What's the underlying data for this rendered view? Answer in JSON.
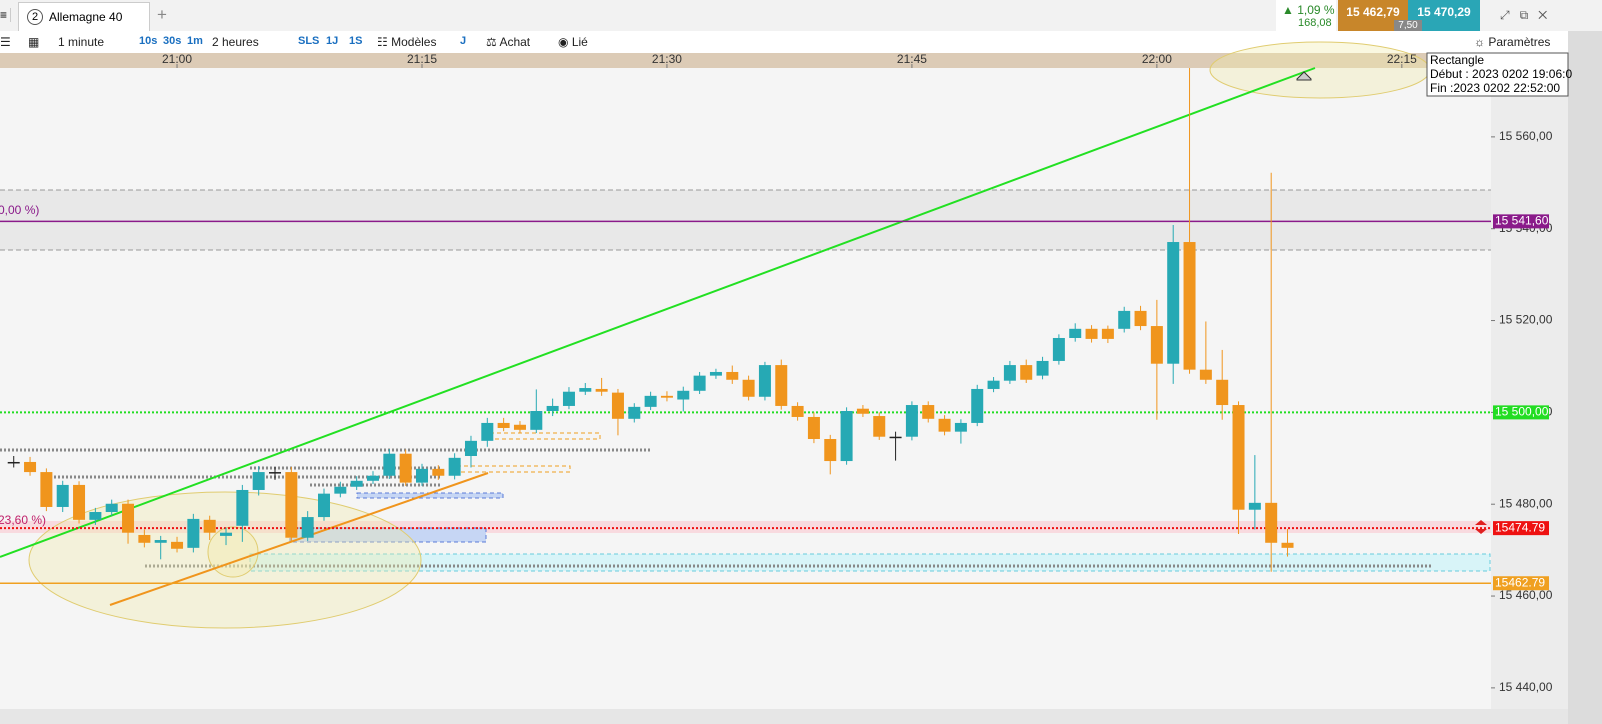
{
  "header": {
    "tab_number": "2",
    "instrument": "Allemagne 40",
    "change_pct": "1,09 %",
    "change_abs": "168,08",
    "bid": "15 462,79",
    "spread": "7,50",
    "ask": "15 470,29"
  },
  "toolbar": {
    "period": "1 minute",
    "q10s": "10s",
    "q30s": "30s",
    "q1m": "1m",
    "range": "2 heures",
    "sls": "SLS",
    "j1": "1J",
    "s1": "1S",
    "models": "Modèles",
    "j": "J",
    "buy": "Achat",
    "linked": "Lié",
    "settings": "Paramètres"
  },
  "tooltip": {
    "title": "Rectangle",
    "start": "Début : 2023 0202 19:06:0",
    "end": "Fin :2023 0202 22:52:00"
  },
  "fib_labels": [
    "0,00 %)",
    "23,60 %)"
  ],
  "chart_data": {
    "type": "candlestick",
    "up_color": "#26a9b4",
    "down_color": "#f0951d",
    "x": [
      1250,
      1251,
      1252,
      1253,
      1254,
      1255,
      1256,
      1257,
      1258,
      1259,
      1260,
      1261,
      1262,
      1263,
      1264,
      1265,
      1266,
      1267,
      1268,
      1269,
      1270,
      1271,
      1272,
      1273,
      1274,
      1275,
      1276,
      1277,
      1278,
      1279,
      1280,
      1281,
      1282,
      1283,
      1284,
      1285,
      1286,
      1287,
      1288,
      1289,
      1290,
      1291,
      1292,
      1293,
      1294,
      1295,
      1296,
      1297,
      1298,
      1299,
      1300,
      1301,
      1302,
      1303,
      1304,
      1305,
      1306,
      1307,
      1308,
      1309,
      1310,
      1311,
      1312,
      1313,
      1314,
      1315,
      1316,
      1317,
      1318,
      1319,
      1320,
      1321,
      1322,
      1323,
      1324,
      1325,
      1326,
      1327,
      1328
    ],
    "open": [
      15489.2,
      15489.2,
      15487.0,
      15479.4,
      15484.2,
      15476.6,
      15478.3,
      15480.1,
      15473.3,
      15471.6,
      15471.8,
      15470.5,
      15476.6,
      15473.1,
      15475.3,
      15483.1,
      15487.0,
      15487.0,
      15472.7,
      15477.2,
      15482.3,
      15483.8,
      15485.1,
      15486.2,
      15491.0,
      15484.7,
      15487.7,
      15486.2,
      15490.5,
      15493.8,
      15497.7,
      15497.3,
      15496.2,
      15500.3,
      15501.4,
      15504.5,
      15505.1,
      15504.3,
      15498.6,
      15501.2,
      15503.6,
      15502.8,
      15504.7,
      15508.0,
      15508.8,
      15507.1,
      15503.4,
      15510.3,
      15501.4,
      15499.0,
      15494.2,
      15489.4,
      15500.8,
      15499.2,
      15494.7,
      15494.7,
      15501.6,
      15498.6,
      15495.8,
      15497.7,
      15505.1,
      15506.9,
      15510.3,
      15508.0,
      15511.2,
      15516.2,
      15518.2,
      15518.2,
      15518.2,
      15522.1,
      15518.8,
      15510.6,
      15537.1,
      15509.3,
      15507.1,
      15501.6,
      15478.8,
      15480.3,
      15471.6
    ],
    "high": [
      15490.5,
      15490.3,
      15487.8,
      15485.1,
      15485.0,
      15479.2,
      15481.0,
      15481.0,
      15474.5,
      15473.1,
      15472.9,
      15477.9,
      15477.5,
      15474.9,
      15484.2,
      15488.3,
      15488.1,
      15488.1,
      15478.5,
      15483.4,
      15484.9,
      15486.1,
      15487.2,
      15492.0,
      15491.9,
      15488.8,
      15488.5,
      15491.1,
      15494.9,
      15498.8,
      15498.8,
      15498.1,
      15505.0,
      15503.0,
      15505.5,
      15506.4,
      15507.5,
      15505.1,
      15502.0,
      15504.5,
      15504.6,
      15505.6,
      15508.8,
      15509.5,
      15510.2,
      15508.0,
      15511.0,
      15511.5,
      15502.2,
      15500.0,
      15495.1,
      15501.1,
      15501.6,
      15500.0,
      15495.8,
      15502.4,
      15502.4,
      15499.4,
      15498.5,
      15506.0,
      15507.7,
      15511.2,
      15511.5,
      15512.1,
      15517.0,
      15519.4,
      15519.0,
      15518.9,
      15523.0,
      15523.2,
      15524.5,
      15540.8,
      15575.0,
      15519.8,
      15513.6,
      15502.4,
      15490.7,
      15552.2,
      15474.6
    ],
    "low": [
      15488.0,
      15486.2,
      15478.5,
      15478.3,
      15475.8,
      15475.5,
      15477.5,
      15471.4,
      15470.6,
      15468.0,
      15469.5,
      15469.5,
      15472.2,
      15471.1,
      15471.8,
      15481.9,
      15485.3,
      15472.0,
      15472.0,
      15476.4,
      15481.5,
      15483.1,
      15484.4,
      15485.5,
      15484.0,
      15484.0,
      15485.3,
      15485.4,
      15488.0,
      15492.5,
      15495.9,
      15495.4,
      15495.5,
      15499.2,
      15500.7,
      15503.8,
      15503.6,
      15495.0,
      15497.8,
      15500.5,
      15502.4,
      15500.2,
      15504.0,
      15507.3,
      15506.2,
      15502.6,
      15502.6,
      15500.6,
      15498.2,
      15493.3,
      15486.5,
      15488.6,
      15499.0,
      15494.0,
      15489.5,
      15493.9,
      15497.8,
      15495.0,
      15493.2,
      15497.0,
      15504.4,
      15506.2,
      15506.4,
      15507.2,
      15510.4,
      15515.4,
      15515.2,
      15515.1,
      15517.4,
      15517.9,
      15498.4,
      15506.2,
      15508.4,
      15506.2,
      15498.4,
      15473.5,
      15474.5,
      15465.3,
      15468.6
    ],
    "close": [
      15489.2,
      15487.0,
      15479.4,
      15484.2,
      15476.6,
      15478.3,
      15480.1,
      15473.8,
      15471.6,
      15472.2,
      15470.3,
      15476.8,
      15473.8,
      15473.8,
      15483.1,
      15487.0,
      15487.0,
      15472.7,
      15477.2,
      15482.3,
      15483.8,
      15485.1,
      15486.2,
      15491.0,
      15484.7,
      15487.7,
      15486.2,
      15490.1,
      15493.8,
      15497.7,
      15496.6,
      15496.2,
      15500.3,
      15501.4,
      15504.5,
      15505.3,
      15504.5,
      15498.6,
      15501.2,
      15503.6,
      15503.2,
      15504.7,
      15508.0,
      15508.8,
      15507.1,
      15503.4,
      15510.3,
      15501.4,
      15499.0,
      15494.2,
      15489.4,
      15500.3,
      15499.7,
      15494.7,
      15494.7,
      15501.6,
      15498.6,
      15495.8,
      15497.7,
      15505.1,
      15506.9,
      15510.3,
      15507.1,
      15511.2,
      15516.2,
      15518.2,
      15516.0,
      15516.0,
      15522.1,
      15518.8,
      15510.6,
      15537.1,
      15509.3,
      15507.1,
      15501.6,
      15478.8,
      15480.3,
      15471.6,
      15470.5
    ],
    "xlim": [
      1249.16,
      1340.46
    ],
    "xticks": [
      {
        "value": 1260,
        "label": "21:00"
      },
      {
        "value": 1275,
        "label": "21:15"
      },
      {
        "value": 1290,
        "label": "21:30"
      },
      {
        "value": 1305,
        "label": "21:45"
      },
      {
        "value": 1320,
        "label": "22:00"
      },
      {
        "value": 1335,
        "label": "22:15"
      }
    ],
    "ylim": [
      15435.4,
      15575
    ],
    "yticks": [
      {
        "value": 15440,
        "label": "15 440,00"
      },
      {
        "value": 15460,
        "label": "15 460,00"
      },
      {
        "value": 15480,
        "label": "15 480,00"
      },
      {
        "value": 15500,
        "label": "15 500,00"
      },
      {
        "value": 15520,
        "label": "15 520,00"
      },
      {
        "value": 15540,
        "label": "15 540,00"
      },
      {
        "value": 15560,
        "label": "15 560,00"
      }
    ],
    "hlines": [
      {
        "value": 15541.6,
        "label": "15 541,60",
        "color": "#8a1a8a",
        "style": "solid"
      },
      {
        "value": 15500,
        "label": "15 500,00",
        "color": "#22dd22",
        "style": "dotted"
      },
      {
        "value": 15474.79,
        "label": "15474.79",
        "color": "#ee1111",
        "style": "dotted"
      },
      {
        "value": 15462.79,
        "label": "15462.79",
        "color": "#f0a020",
        "style": "solid"
      }
    ]
  }
}
